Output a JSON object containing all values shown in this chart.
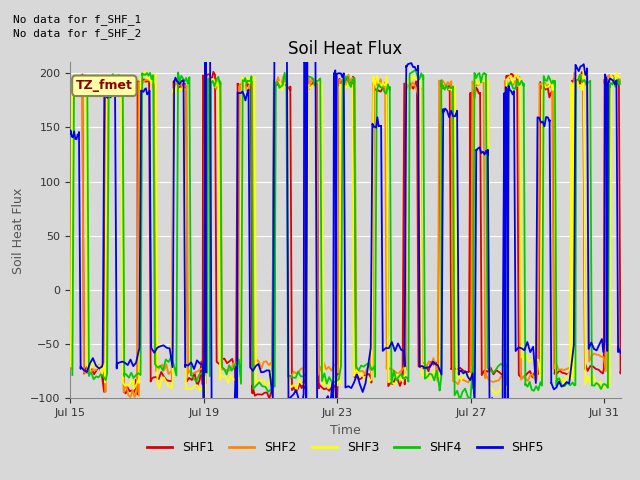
{
  "title": "Soil Heat Flux",
  "xlabel": "Time",
  "ylabel": "Soil Heat Flux",
  "ylim": [
    -100,
    210
  ],
  "yticks": [
    -100,
    -50,
    0,
    50,
    100,
    150,
    200
  ],
  "note_line1": "No data for f_SHF_1",
  "note_line2": "No data for f_SHF_2",
  "annotation_box": "TZ_fmet",
  "legend_entries": [
    "SHF1",
    "SHF2",
    "SHF3",
    "SHF4",
    "SHF5"
  ],
  "line_colors": {
    "SHF1": "#dd0000",
    "SHF2": "#ff8800",
    "SHF3": "#ffff00",
    "SHF4": "#00cc00",
    "SHF5": "#0000ee"
  },
  "bg_color": "#d8d8d8",
  "plot_bg": "#d8d8d8",
  "grid_color": "#ffffff",
  "xstart": 0,
  "xend": 16.5,
  "xtick_positions": [
    0,
    4,
    8,
    12,
    16
  ],
  "xtick_labels": [
    "Jul 15",
    "Jul 19",
    "Jul 23",
    "Jul 27",
    "Jul 31"
  ]
}
